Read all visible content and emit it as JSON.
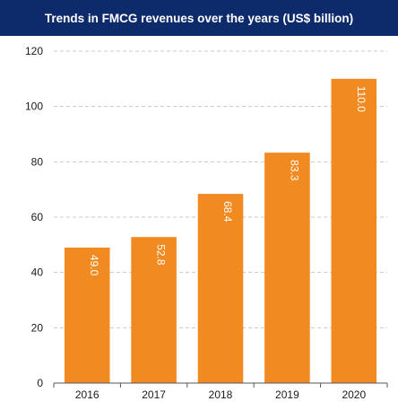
{
  "chart_data": {
    "type": "bar",
    "title": "Trends in FMCG revenues over the years (US$ billion)",
    "categories": [
      "2016",
      "2017",
      "2018",
      "2019",
      "2020"
    ],
    "values": [
      49.0,
      52.8,
      68.4,
      83.3,
      110.0
    ],
    "value_labels": [
      "49.0",
      "52.8",
      "68.4",
      "83.3",
      "110.0"
    ],
    "ylim": [
      0,
      120
    ],
    "yticks": [
      0,
      20,
      40,
      60,
      80,
      100,
      120
    ],
    "xlabel": "",
    "ylabel": "",
    "grid": "horizontal dashed",
    "colors": {
      "bar": "#f28a22",
      "title_bg": "#0d2a6b",
      "grid": "#c8c8c8",
      "axis": "#555555"
    }
  }
}
